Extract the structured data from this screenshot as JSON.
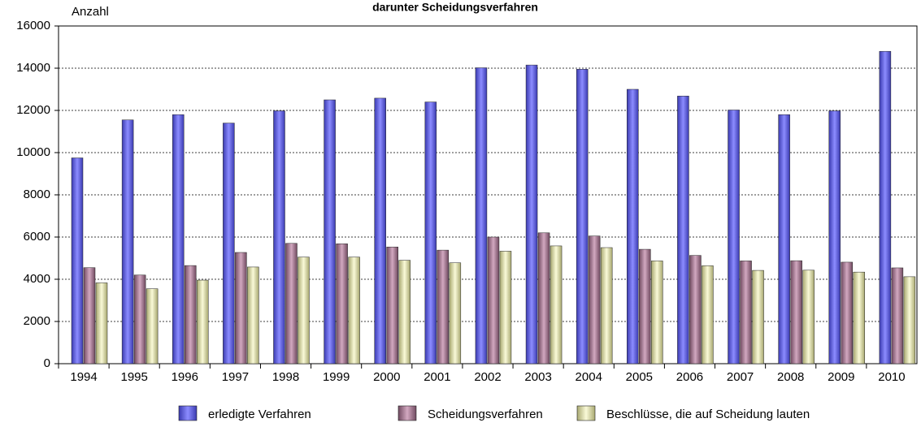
{
  "chart_data": {
    "type": "bar",
    "title": "darunter Scheidungsverfahren",
    "y_label": "Anzahl",
    "categories": [
      "1994",
      "1995",
      "1996",
      "1997",
      "1998",
      "1999",
      "2000",
      "2001",
      "2002",
      "2003",
      "2004",
      "2005",
      "2006",
      "2007",
      "2008",
      "2009",
      "2010"
    ],
    "series": [
      {
        "name": "erledigte Verfahren",
        "color": "#6464e6",
        "values": [
          9750,
          11550,
          11800,
          11400,
          11980,
          12500,
          12580,
          12400,
          14020,
          14150,
          13950,
          13000,
          12680,
          12020,
          11800,
          11980,
          14800
        ]
      },
      {
        "name": "Scheidungsverfahren",
        "color": "#a07890",
        "values": [
          4550,
          4200,
          4650,
          5270,
          5700,
          5680,
          5530,
          5380,
          6000,
          6200,
          6050,
          5420,
          5130,
          4870,
          4880,
          4810,
          4540
        ]
      },
      {
        "name": "Beschlüsse, die auf Scheidung lauten",
        "color": "#e4e4b0",
        "values": [
          3830,
          3550,
          3960,
          4580,
          5050,
          5050,
          4900,
          4780,
          5330,
          5580,
          5500,
          4870,
          4640,
          4420,
          4430,
          4340,
          4120
        ]
      }
    ],
    "ylim": [
      0,
      16000
    ],
    "yticks": [
      0,
      2000,
      4000,
      6000,
      8000,
      10000,
      12000,
      14000,
      16000
    ],
    "grid": true,
    "legend": "bottom"
  }
}
